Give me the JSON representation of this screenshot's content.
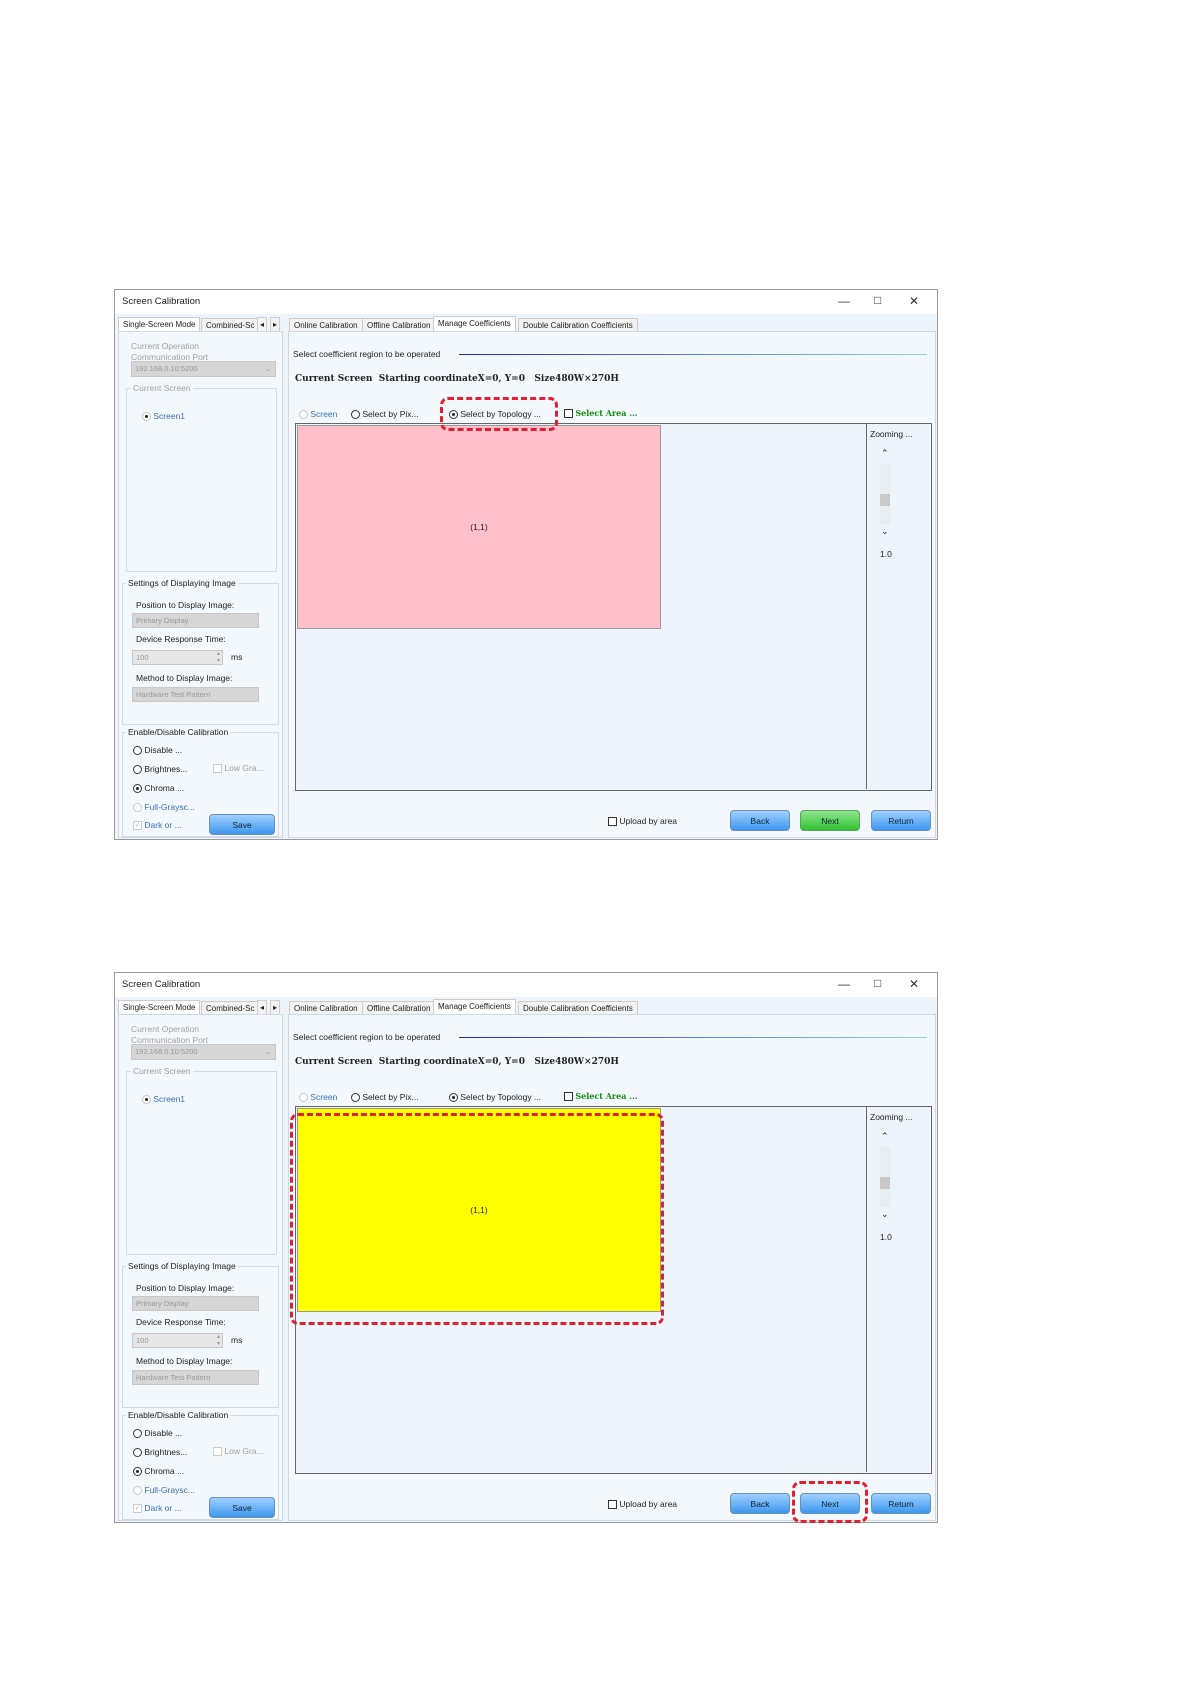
{
  "windows": [
    {
      "title": "Screen Calibration",
      "left_tabs": [
        "Single-Screen Mode",
        "Combined-Sc"
      ],
      "current_operation": "Current Operation",
      "communication_port": "Communication Port",
      "port_value": "192.168.0.10:5200",
      "current_screen": "Current Screen",
      "screen_item": "Screen1",
      "settings_title": "Settings of Displaying Image",
      "position_label": "Position to Display Image:",
      "position_value": "Primary Display",
      "response_label": "Device Response Time:",
      "response_value": "100",
      "response_unit": "ms",
      "method_label": "Method to Display Image:",
      "method_value": "Hardware Test Pattern",
      "enable_title": "Enable/Disable Calibration",
      "opt_disable": "Disable ...",
      "opt_brightness": "Brightnes...",
      "opt_lowgray": "Low Gra...",
      "opt_chroma": "Chroma ...",
      "opt_fullgray": "Full-Graysc...",
      "opt_dark": "Dark or ...",
      "save": "Save",
      "tabs": [
        "Online Calibration",
        "Offline Calibration",
        "Manage Coefficients",
        "Double Calibration Coefficients"
      ],
      "section_label": "Select coefficient region to be operated",
      "info": "Current Screen  Starting coordinateX=0, Y=0   Size480W×270H",
      "radio_screen": "Screen",
      "radio_pixel": "Select by Pix...",
      "radio_topology": "Select by Topology ...",
      "select_area": "Select Area ...",
      "cell_label": "(1,1)",
      "cell_color": "#ffc0cb",
      "zooming": "Zooming ...",
      "zoom_value": "1.0",
      "upload_by_area": "Upload by area",
      "back": "Back",
      "next": "Next",
      "return": "Return",
      "next_color": "green",
      "highlight": "topology-radio"
    },
    {
      "title": "Screen Calibration",
      "left_tabs": [
        "Single-Screen Mode",
        "Combined-Sc"
      ],
      "current_operation": "Current Operation",
      "communication_port": "Communication Port",
      "port_value": "192.168.0.10:5200",
      "current_screen": "Current Screen",
      "screen_item": "Screen1",
      "settings_title": "Settings of Displaying Image",
      "position_label": "Position to Display Image:",
      "position_value": "Primary Display",
      "response_label": "Device Response Time:",
      "response_value": "100",
      "response_unit": "ms",
      "method_label": "Method to Display Image:",
      "method_value": "Hardware Test Pattern",
      "enable_title": "Enable/Disable Calibration",
      "opt_disable": "Disable ...",
      "opt_brightness": "Brightnes...",
      "opt_lowgray": "Low Gra...",
      "opt_chroma": "Chroma ...",
      "opt_fullgray": "Full-Graysc...",
      "opt_dark": "Dark or ...",
      "save": "Save",
      "tabs": [
        "Online Calibration",
        "Offline Calibration",
        "Manage Coefficients",
        "Double Calibration Coefficients"
      ],
      "section_label": "Select coefficient region to be operated",
      "info": "Current Screen  Starting coordinateX=0, Y=0   Size480W×270H",
      "radio_screen": "Screen",
      "radio_pixel": "Select by Pix...",
      "radio_topology": "Select by Topology ...",
      "select_area": "Select Area ...",
      "cell_label": "(1,1)",
      "cell_color": "#ffff00",
      "zooming": "Zooming ...",
      "zoom_value": "1.0",
      "upload_by_area": "Upload by area",
      "back": "Back",
      "next": "Next",
      "return": "Return",
      "next_color": "blue",
      "highlight": "cell-and-next"
    }
  ]
}
